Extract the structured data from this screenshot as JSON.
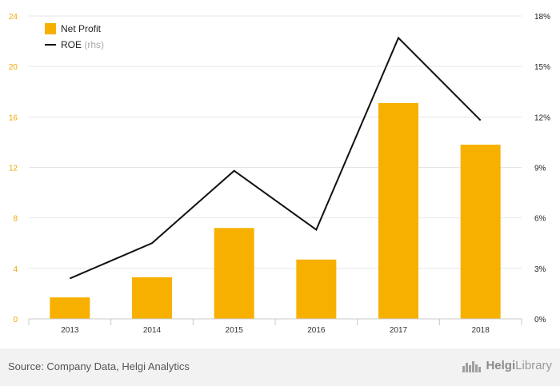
{
  "chart_data": {
    "type": "bar",
    "categories": [
      "2013",
      "2014",
      "2015",
      "2016",
      "2017",
      "2018"
    ],
    "series": [
      {
        "name": "Net Profit",
        "type": "bar",
        "axis": "left",
        "color": "#f7b000",
        "values": [
          1.7,
          3.3,
          7.2,
          4.7,
          17.1,
          13.8
        ]
      },
      {
        "name": "ROE",
        "name_suffix": "(rhs)",
        "type": "line",
        "axis": "right",
        "color": "#111111",
        "values": [
          2.4,
          4.5,
          8.8,
          5.3,
          16.7,
          11.8
        ]
      }
    ],
    "y_left": {
      "ylim": [
        0,
        24
      ],
      "ticks": [
        "0",
        "4",
        "8",
        "12",
        "16",
        "20",
        "24"
      ],
      "tick_color": "#f0a800"
    },
    "y_right": {
      "ylim": [
        0,
        18
      ],
      "ticks": [
        "0%",
        "3%",
        "6%",
        "9%",
        "12%",
        "15%",
        "18%"
      ]
    },
    "grid": true,
    "legend_position": "top-left"
  },
  "footer": {
    "source": "Source: Company Data, Helgi Analytics",
    "brand_prefix": "Helgi",
    "brand_suffix": "Library"
  }
}
